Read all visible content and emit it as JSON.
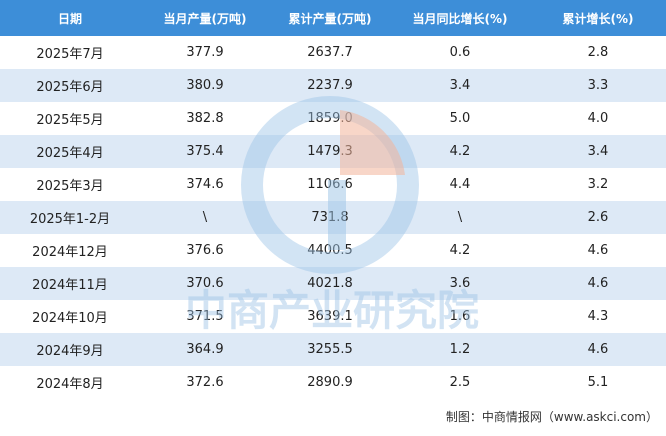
{
  "table": {
    "columns": [
      "日期",
      "当月产量(万吨)",
      "累计产量(万吨)",
      "当月同比增长(%)",
      "累计增长(%)"
    ],
    "rows": [
      [
        "2025年7月",
        "377.9",
        "2637.7",
        "0.6",
        "2.8"
      ],
      [
        "2025年6月",
        "380.9",
        "2237.9",
        "3.4",
        "3.3"
      ],
      [
        "2025年5月",
        "382.8",
        "1859.0",
        "5.0",
        "4.0"
      ],
      [
        "2025年4月",
        "375.4",
        "1479.3",
        "4.2",
        "3.4"
      ],
      [
        "2025年3月",
        "374.6",
        "1106.6",
        "4.4",
        "3.2"
      ],
      [
        "2025年1-2月",
        "\\",
        "731.8",
        "\\",
        "2.6"
      ],
      [
        "2024年12月",
        "376.6",
        "4400.5",
        "4.2",
        "4.6"
      ],
      [
        "2024年11月",
        "370.6",
        "4021.8",
        "3.6",
        "4.6"
      ],
      [
        "2024年10月",
        "371.5",
        "3639.1",
        "1.6",
        "4.3"
      ],
      [
        "2024年9月",
        "364.9",
        "3255.5",
        "1.2",
        "4.6"
      ],
      [
        "2024年8月",
        "372.6",
        "2890.9",
        "2.5",
        "5.1"
      ]
    ]
  },
  "watermark": "中商产业研究院",
  "source": "制图：中商情报网（www.askci.com）"
}
